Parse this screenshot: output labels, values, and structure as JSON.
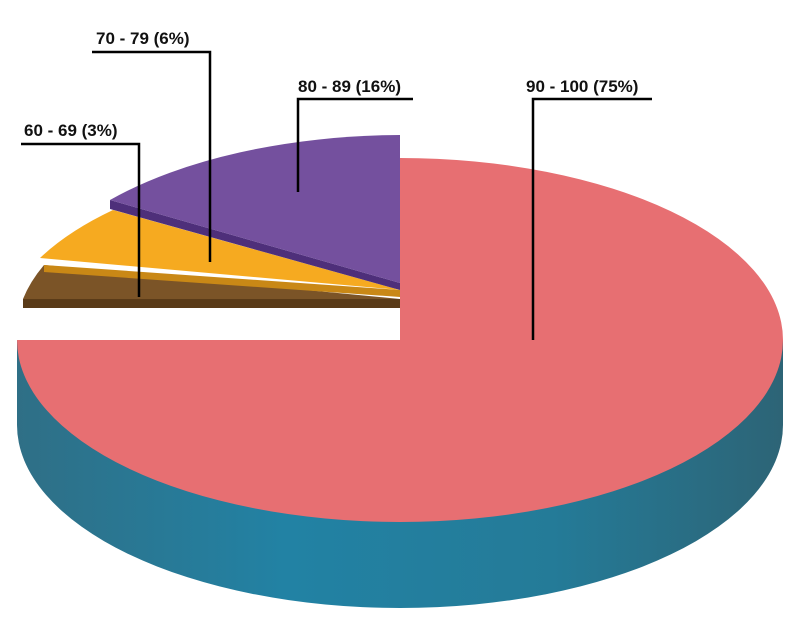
{
  "chart_data": {
    "type": "pie",
    "style": "3d-exploded",
    "title": "",
    "slices": [
      {
        "label": "90 - 100 (75%)",
        "category": "90 - 100",
        "value": 75,
        "color": "#E76F72",
        "side_color": "#247B98"
      },
      {
        "label": "60 - 69 (3%)",
        "category": "60 - 69",
        "value": 3,
        "color": "#7B5427",
        "side_color": "#5A3B18"
      },
      {
        "label": "70 - 79 (6%)",
        "category": "70 - 79",
        "value": 6,
        "color": "#F6AA20",
        "side_color": "#C98816"
      },
      {
        "label": "80 - 89 (16%)",
        "category": "80 - 89",
        "value": 16,
        "color": "#74509E",
        "side_color": "#4E2F7A"
      }
    ],
    "legend": "none",
    "labels": "leader-lines"
  }
}
